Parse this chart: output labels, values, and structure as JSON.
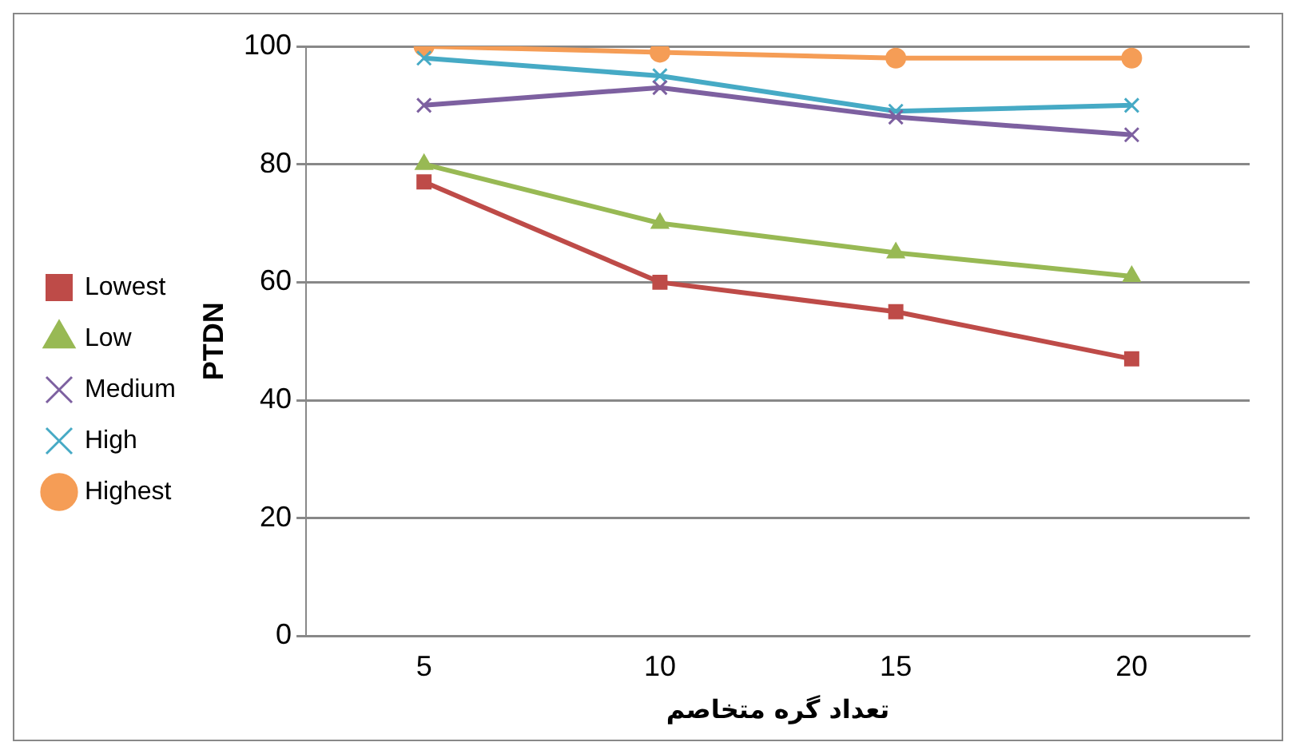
{
  "chart_data": {
    "type": "line",
    "xlabel": "تعداد گره متخاصم",
    "ylabel": "PTDN",
    "categories": [
      "5",
      "10",
      "15",
      "20"
    ],
    "series": [
      {
        "name": "Lowest",
        "color": "#be4b48",
        "marker": "square",
        "values": [
          77,
          60,
          55,
          47
        ]
      },
      {
        "name": "Low",
        "color": "#98b954",
        "marker": "triangle",
        "values": [
          80,
          70,
          65,
          61
        ]
      },
      {
        "name": "Medium",
        "color": "#7d60a0",
        "marker": "cross",
        "values": [
          90,
          93,
          88,
          85
        ]
      },
      {
        "name": "High",
        "color": "#46aac5",
        "marker": "cross",
        "values": [
          98,
          95,
          89,
          90
        ]
      },
      {
        "name": "Highest",
        "color": "#f59d56",
        "marker": "circle",
        "values": [
          100,
          99,
          98,
          98
        ]
      }
    ],
    "ylim": [
      0,
      100
    ],
    "yticks": [
      0,
      20,
      40,
      60,
      80,
      100
    ],
    "grid": "y",
    "legend": "left"
  }
}
